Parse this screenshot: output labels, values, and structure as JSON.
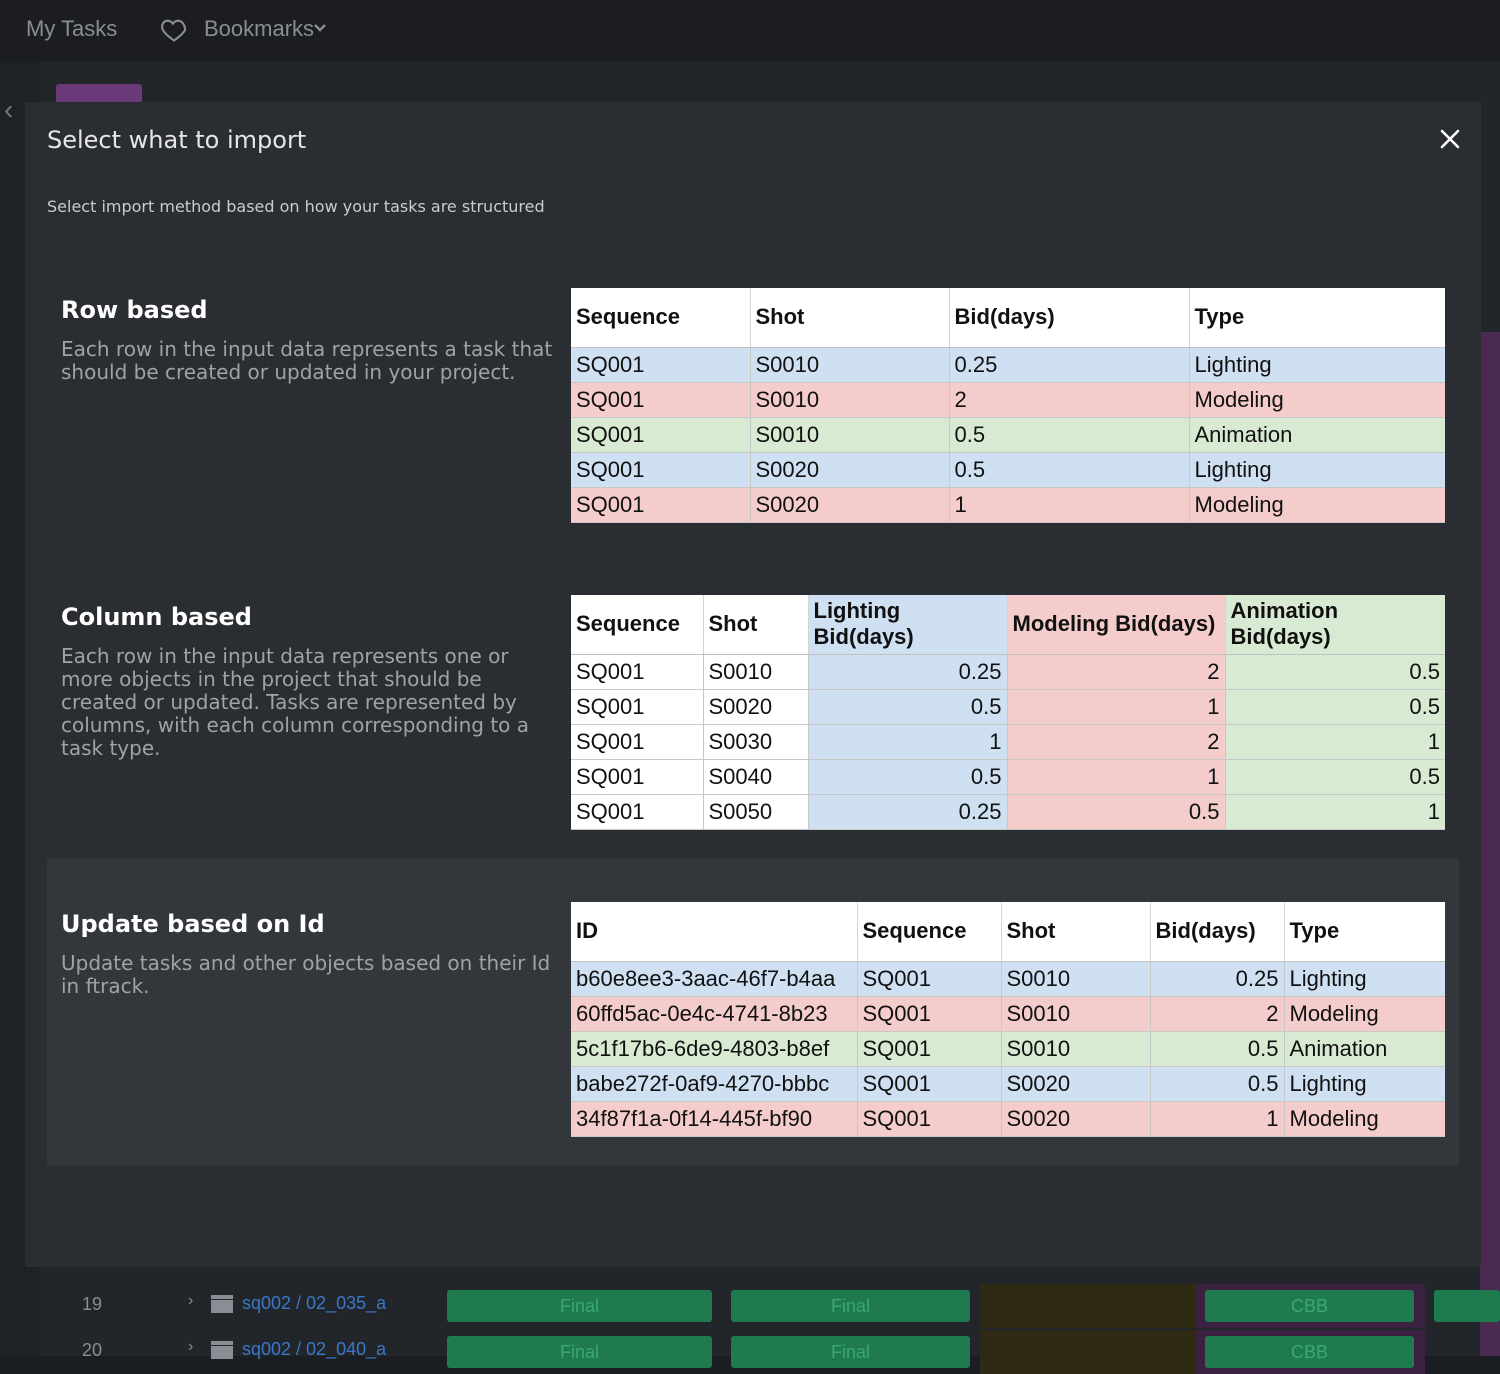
{
  "topbar": {
    "my_tasks": "My Tasks",
    "bookmarks": "Bookmarks"
  },
  "background": {
    "rows": [
      {
        "number": "19",
        "link": "sq002 / 02_035_a",
        "cells": [
          "Final",
          "Final",
          "CBB"
        ]
      },
      {
        "number": "20",
        "link": "sq002 / 02_040_a",
        "cells": [
          "Final",
          "Final",
          "CBB"
        ]
      }
    ]
  },
  "modal": {
    "title": "Select what to import",
    "subtitle": "Select import method based on how your tasks are structured",
    "options": [
      {
        "heading": "Row based",
        "description": "Each row in the input data represents a task that should be created or updated in your project.",
        "table": {
          "headers": [
            "Sequence",
            "Shot",
            "Bid(days)",
            "Type"
          ],
          "rows": [
            {
              "color": "blue",
              "cells": [
                "SQ001",
                "S0010",
                "0.25",
                "Lighting"
              ]
            },
            {
              "color": "red",
              "cells": [
                "SQ001",
                "S0010",
                "2",
                "Modeling"
              ]
            },
            {
              "color": "green",
              "cells": [
                "SQ001",
                "S0010",
                "0.5",
                "Animation"
              ]
            },
            {
              "color": "blue",
              "cells": [
                "SQ001",
                "S0020",
                "0.5",
                "Lighting"
              ]
            },
            {
              "color": "red",
              "cells": [
                "SQ001",
                "S0020",
                "1",
                "Modeling"
              ]
            }
          ]
        }
      },
      {
        "heading": "Column based",
        "description": "Each row in the input data represents one or more objects in the project that should be created or updated. Tasks are represented by columns, with each column corresponding to a task type.",
        "table": {
          "headers": [
            "Sequence",
            "Shot",
            "Lighting Bid(days)",
            "Modeling Bid(days)",
            "Animation Bid(days)"
          ],
          "header_colors": [
            "white",
            "white",
            "blue",
            "red",
            "green"
          ],
          "rows": [
            {
              "cells": [
                "SQ001",
                "S0010",
                "0.25",
                "2",
                "0.5"
              ]
            },
            {
              "cells": [
                "SQ001",
                "S0020",
                "0.5",
                "1",
                "0.5"
              ]
            },
            {
              "cells": [
                "SQ001",
                "S0030",
                "1",
                "2",
                "1"
              ]
            },
            {
              "cells": [
                "SQ001",
                "S0040",
                "0.5",
                "1",
                "0.5"
              ]
            },
            {
              "cells": [
                "SQ001",
                "S0050",
                "0.25",
                "0.5",
                "1"
              ]
            }
          ]
        }
      },
      {
        "heading": "Update based on Id",
        "description": "Update tasks and other objects based on their Id in ftrack.",
        "table": {
          "headers": [
            "ID",
            "Sequence",
            "Shot",
            "Bid(days)",
            "Type"
          ],
          "rows": [
            {
              "color": "blue",
              "cells": [
                "b60e8ee3-3aac-46f7-b4aa",
                "SQ001",
                "S0010",
                "0.25",
                "Lighting"
              ]
            },
            {
              "color": "red",
              "cells": [
                "60ffd5ac-0e4c-4741-8b23",
                "SQ001",
                "S0010",
                "2",
                "Modeling"
              ]
            },
            {
              "color": "green",
              "cells": [
                "5c1f17b6-6de9-4803-b8ef",
                "SQ001",
                "S0010",
                "0.5",
                "Animation"
              ]
            },
            {
              "color": "blue",
              "cells": [
                "babe272f-0af9-4270-bbbc",
                "SQ001",
                "S0020",
                "0.5",
                "Lighting"
              ]
            },
            {
              "color": "red",
              "cells": [
                "34f87f1a-0f14-445f-bf90",
                "SQ001",
                "S0020",
                "1",
                "Modeling"
              ]
            }
          ]
        }
      }
    ]
  },
  "colors": {
    "blue": "#cfe0f3",
    "red": "#f4cccc",
    "green": "#d9ead3"
  }
}
